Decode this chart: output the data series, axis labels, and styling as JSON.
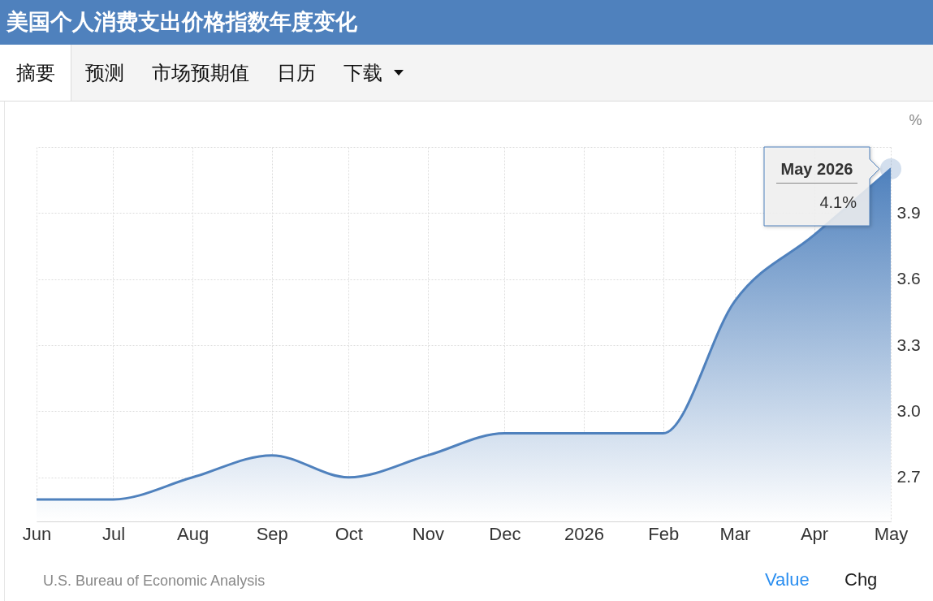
{
  "chart_data": {
    "type": "area",
    "title": "美国个人消费支出价格指数年度变化",
    "ylabel": "%",
    "x": [
      "2025-06",
      "2025-07",
      "2025-08",
      "2025-09",
      "2025-10",
      "2025-11",
      "2025-12",
      "2026-01",
      "2026-02",
      "2026-03",
      "2026-04",
      "2026-05"
    ],
    "values": [
      2.6,
      2.6,
      2.7,
      2.8,
      2.7,
      2.8,
      2.9,
      2.9,
      2.9,
      3.5,
      3.8,
      4.1
    ],
    "color": "#4f81bd",
    "xlim": [
      "2025-06",
      "2026-05"
    ],
    "xticks": [
      {
        "value": "2025-06",
        "label": "Jun"
      },
      {
        "value": "2025-07",
        "label": "Jul"
      },
      {
        "value": "2025-08",
        "label": "Aug"
      },
      {
        "value": "2025-09",
        "label": "Sep"
      },
      {
        "value": "2025-10",
        "label": "Oct"
      },
      {
        "value": "2025-11",
        "label": "Nov"
      },
      {
        "value": "2025-12",
        "label": "Dec"
      },
      {
        "value": "2026-01",
        "label": "2026"
      },
      {
        "value": "2026-02",
        "label": "Feb"
      },
      {
        "value": "2026-03",
        "label": "Mar"
      },
      {
        "value": "2026-04",
        "label": "Apr"
      },
      {
        "value": "2026-05",
        "label": "May"
      }
    ],
    "ylim": [
      2.5,
      4.2
    ],
    "yticks": [
      2.7,
      {
        "value": 3,
        "label": "3.0"
      },
      3.3,
      3.6,
      3.9,
      {
        "value": 4.2,
        "label": null
      }
    ],
    "grid": true,
    "annotations": [
      {
        "text": "May 2026",
        "x": "2026-05",
        "y": 4.1
      },
      {
        "text": "4.1%",
        "x": "2026-05",
        "y": 4.1
      },
      "摘要",
      "预测",
      "市场预期值",
      "日历",
      "下载",
      "U.S. Bureau of Economic Analysis",
      "Value",
      "Chg"
    ]
  }
}
